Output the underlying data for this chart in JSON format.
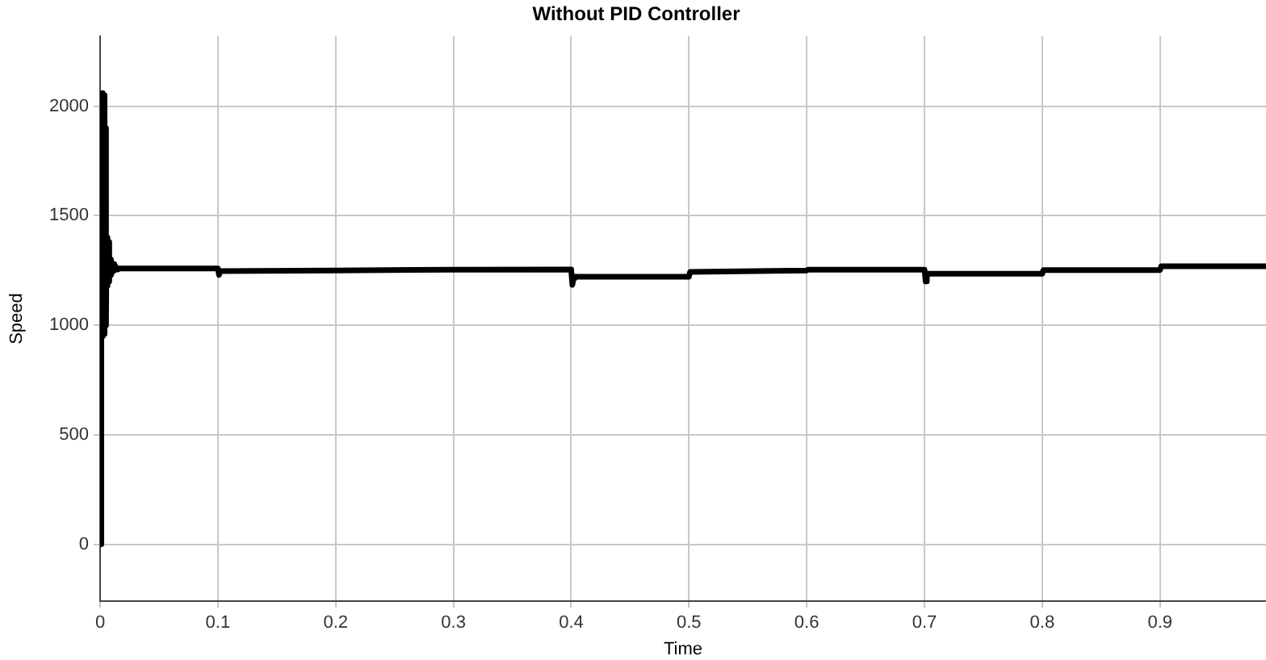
{
  "chart_data": {
    "type": "line",
    "title": "Without PID Controller",
    "xlabel": "Time",
    "ylabel": "Speed",
    "x": [
      0,
      0.001,
      0.0015,
      0.002,
      0.0025,
      0.003,
      0.0035,
      0.004,
      0.0045,
      0.005,
      0.0055,
      0.006,
      0.0065,
      0.007,
      0.0075,
      0.008,
      0.0085,
      0.009,
      0.0095,
      0.01,
      0.011,
      0.012,
      0.013,
      0.014,
      0.015,
      0.1,
      0.101,
      0.102,
      0.2,
      0.3,
      0.4,
      0.401,
      0.402,
      0.403,
      0.5,
      0.501,
      0.6,
      0.601,
      0.7,
      0.701,
      0.702,
      0.8,
      0.801,
      0.9,
      0.901,
      0.99
    ],
    "series": [
      {
        "color": "#000000",
        "values": [
          0,
          1000,
          2060,
          950,
          2060,
          960,
          2050,
          980,
          1900,
          1000,
          1400,
          1180,
          1400,
          1200,
          1380,
          1220,
          1300,
          1230,
          1300,
          1240,
          1280,
          1250,
          1270,
          1255,
          1259,
          1259,
          1230,
          1247,
          1250,
          1254,
          1255,
          1185,
          1215,
          1222,
          1222,
          1244,
          1250,
          1254,
          1254,
          1200,
          1235,
          1235,
          1252,
          1252,
          1269,
          1269
        ]
      }
    ],
    "xlim": [
      0,
      0.99
    ],
    "xticks": [
      0,
      0.1,
      0.2,
      0.3,
      0.4,
      0.5,
      0.6,
      0.7,
      0.8,
      0.9
    ],
    "ylim": [
      -260,
      2320
    ],
    "yticks": [
      0,
      500,
      1000,
      1500,
      2000
    ],
    "grid": true,
    "legend": false,
    "marker": "none",
    "line_style": "solid"
  }
}
